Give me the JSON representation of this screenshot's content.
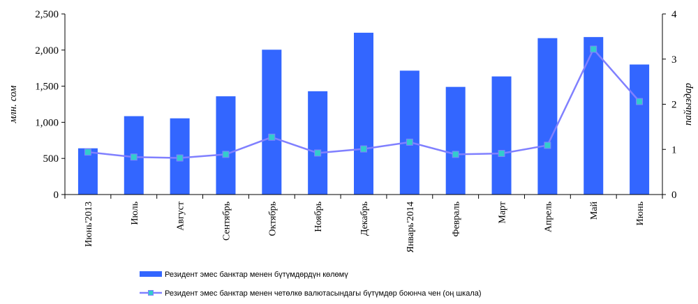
{
  "chart_data": {
    "type": "bar",
    "categories": [
      "Июнь'2013",
      "Июль",
      "Август",
      "Сентябрь",
      "Октябрь",
      "Ноябрь",
      "Декабрь",
      "Январь'2014",
      "Февраль",
      "Март",
      "Апрель",
      "Май",
      "Июнь"
    ],
    "series": [
      {
        "name": "Резидент эмес банктар менен бүтүмдөрдүн көлөмү",
        "type": "bar",
        "axis": "left",
        "color": "#3366FF",
        "values": [
          640,
          1085,
          1055,
          1360,
          2005,
          1430,
          2240,
          1715,
          1490,
          1635,
          2165,
          2180,
          1800
        ]
      },
      {
        "name": "Резидент эмес банктар менен четөлкө валютасындагы бүтүмдөр боюнча чен (оң шкала)",
        "type": "line",
        "axis": "right",
        "color": "#8080FF",
        "marker_color": "#33CCCC",
        "values": [
          0.94,
          0.83,
          0.81,
          0.89,
          1.27,
          0.92,
          1.01,
          1.16,
          0.89,
          0.91,
          1.09,
          3.22,
          2.06
        ]
      }
    ],
    "ylabel": "млн. сом",
    "ylabel_right": "пайыздар",
    "ylim": [
      0,
      2500
    ],
    "ylim_right": [
      0,
      4
    ],
    "yticks": [
      "0",
      "500",
      "1,000",
      "1,500",
      "2,000",
      "2,500"
    ],
    "yticks_right": [
      "0",
      "1",
      "2",
      "3",
      "4"
    ],
    "grid": false,
    "legend_position": "bottom"
  }
}
